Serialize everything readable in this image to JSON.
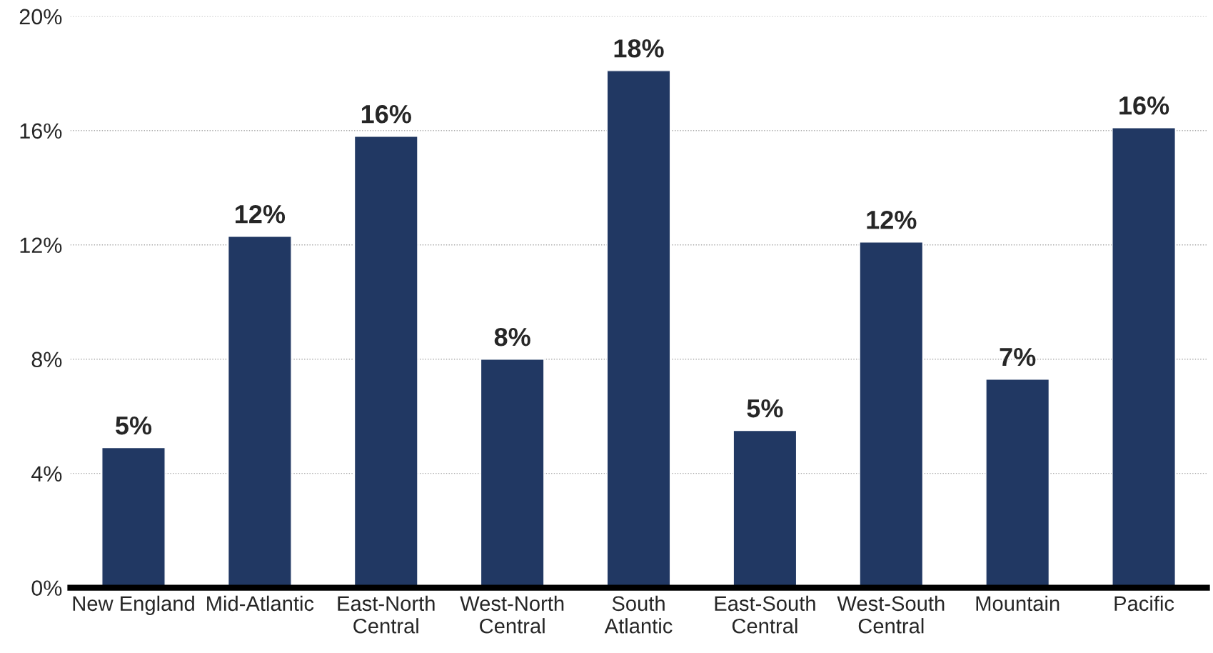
{
  "chart_data": {
    "type": "bar",
    "categories": [
      "New England",
      "Mid-Atlantic",
      "East-North\nCentral",
      "West-North\nCentral",
      "South\nAtlantic",
      "East-South\nCentral",
      "West-South\nCentral",
      "Mountain",
      "Pacific"
    ],
    "values": [
      4.9,
      12.3,
      15.8,
      8.0,
      18.1,
      5.5,
      12.1,
      7.3,
      16.1
    ],
    "value_labels": [
      "5%",
      "12%",
      "16%",
      "8%",
      "18%",
      "5%",
      "12%",
      "7%",
      "16%"
    ],
    "color": "#213863",
    "ylim": [
      0,
      20
    ],
    "yticks": [
      {
        "value": 0,
        "label": "0%"
      },
      {
        "value": 4,
        "label": "4%"
      },
      {
        "value": 8,
        "label": "8%"
      },
      {
        "value": 12,
        "label": "12%"
      },
      {
        "value": 16,
        "label": "16%"
      },
      {
        "value": 20,
        "label": "20%"
      }
    ],
    "grid": "y"
  }
}
